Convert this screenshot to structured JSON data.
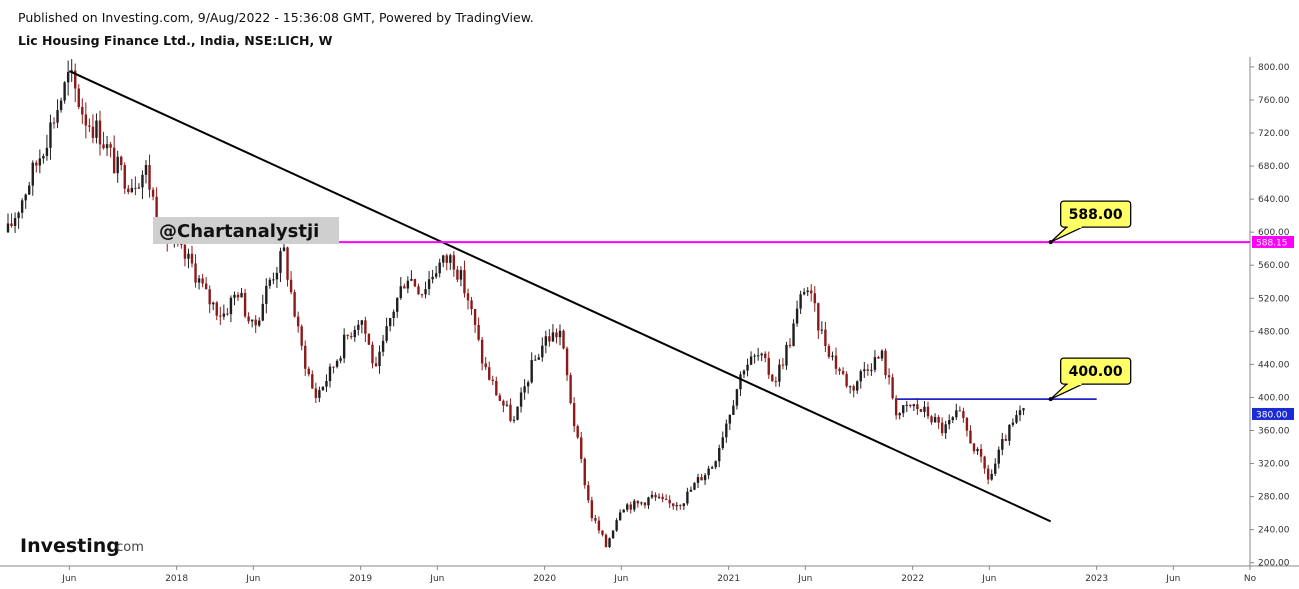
{
  "header": {
    "published": "Published on Investing.com, 9/Aug/2022 - 15:36:08 GMT, Powered by TradingView.",
    "title": "Lic Housing Finance Ltd., India, NSE:LICH, W"
  },
  "watermark": "@Chartanalystji",
  "brand": {
    "name": "Investing",
    "suffix": ".com"
  },
  "colors": {
    "up": "#1f1f1f",
    "down": "#8b1a1a",
    "resistance": "#ff00ff",
    "support_line": "#2222cc",
    "trendline": "#000000",
    "callout_fill": "#ffff66",
    "price_tag_current": "#1a2bd6",
    "price_tag_level": "#ff00ff"
  },
  "chart_data": {
    "type": "candlestick",
    "interval": "W",
    "y_axis": {
      "ticks": [
        "200.00",
        "240.00",
        "280.00",
        "320.00",
        "360.00",
        "400.00",
        "440.00",
        "480.00",
        "520.00",
        "560.00",
        "600.00",
        "640.00",
        "680.00",
        "720.00",
        "760.00",
        "800.00"
      ],
      "ylim": [
        196,
        812
      ]
    },
    "x_axis": {
      "ticks": [
        {
          "label": "Jun",
          "date": "2017-06"
        },
        {
          "label": "2018",
          "date": "2018-01"
        },
        {
          "label": "Jun",
          "date": "2018-06"
        },
        {
          "label": "2019",
          "date": "2019-01"
        },
        {
          "label": "Jun",
          "date": "2019-06"
        },
        {
          "label": "2020",
          "date": "2020-01"
        },
        {
          "label": "Jun",
          "date": "2020-06"
        },
        {
          "label": "2021",
          "date": "2021-01"
        },
        {
          "label": "Jun",
          "date": "2021-06"
        },
        {
          "label": "2022",
          "date": "2022-01"
        },
        {
          "label": "Jun",
          "date": "2022-06"
        },
        {
          "label": "2023",
          "date": "2023-01"
        },
        {
          "label": "Jun",
          "date": "2023-06"
        },
        {
          "label": "No",
          "date": "2023-11"
        }
      ],
      "xlim": [
        "2017-02",
        "2023-11"
      ]
    },
    "series_path": [
      [
        "2017-02",
        600
      ],
      [
        "2017-04",
        690
      ],
      [
        "2017-05",
        740
      ],
      [
        "2017-06",
        790
      ],
      [
        "2017-07",
        740
      ],
      [
        "2017-08",
        720
      ],
      [
        "2017-09",
        680
      ],
      [
        "2017-10",
        660
      ],
      [
        "2017-11",
        675
      ],
      [
        "2017-12",
        600
      ],
      [
        "2018-01",
        580
      ],
      [
        "2018-02",
        560
      ],
      [
        "2018-03",
        520
      ],
      [
        "2018-04",
        500
      ],
      [
        "2018-05",
        530
      ],
      [
        "2018-06",
        480
      ],
      [
        "2018-07",
        540
      ],
      [
        "2018-08",
        575
      ],
      [
        "2018-09",
        470
      ],
      [
        "2018-10",
        400
      ],
      [
        "2018-11",
        430
      ],
      [
        "2018-12",
        470
      ],
      [
        "2019-01",
        500
      ],
      [
        "2019-02",
        430
      ],
      [
        "2019-03",
        500
      ],
      [
        "2019-04",
        550
      ],
      [
        "2019-05",
        530
      ],
      [
        "2019-06",
        560
      ],
      [
        "2019-07",
        570
      ],
      [
        "2019-08",
        520
      ],
      [
        "2019-09",
        440
      ],
      [
        "2019-10",
        400
      ],
      [
        "2019-11",
        370
      ],
      [
        "2019-12",
        430
      ],
      [
        "2020-01",
        470
      ],
      [
        "2020-02",
        480
      ],
      [
        "2020-03",
        360
      ],
      [
        "2020-04",
        260
      ],
      [
        "2020-05",
        220
      ],
      [
        "2020-06",
        270
      ],
      [
        "2020-07",
        270
      ],
      [
        "2020-08",
        280
      ],
      [
        "2020-09",
        270
      ],
      [
        "2020-10",
        275
      ],
      [
        "2020-11",
        300
      ],
      [
        "2020-12",
        320
      ],
      [
        "2021-01",
        380
      ],
      [
        "2021-02",
        440
      ],
      [
        "2021-03",
        450
      ],
      [
        "2021-04",
        420
      ],
      [
        "2021-05",
        470
      ],
      [
        "2021-06",
        540
      ],
      [
        "2021-07",
        480
      ],
      [
        "2021-08",
        440
      ],
      [
        "2021-09",
        410
      ],
      [
        "2021-10",
        440
      ],
      [
        "2021-11",
        450
      ],
      [
        "2021-12",
        380
      ],
      [
        "2022-01",
        390
      ],
      [
        "2022-02",
        380
      ],
      [
        "2022-03",
        360
      ],
      [
        "2022-04",
        380
      ],
      [
        "2022-05",
        340
      ],
      [
        "2022-06",
        300
      ],
      [
        "2022-07",
        350
      ],
      [
        "2022-08",
        380
      ]
    ],
    "lines": [
      {
        "name": "trendline",
        "from": [
          "2017-06",
          795
        ],
        "to": [
          "2022-10",
          250
        ]
      },
      {
        "name": "horizontal-588",
        "from": [
          "2018-01",
          588
        ],
        "to": [
          "2023-11",
          588
        ]
      },
      {
        "name": "horizontal-400",
        "from": [
          "2021-12",
          398
        ],
        "to": [
          "2023-01",
          398
        ]
      }
    ],
    "callouts": [
      {
        "label": "588.00",
        "anchor": [
          "2022-10",
          588
        ]
      },
      {
        "label": "400.00",
        "anchor": [
          "2022-10",
          398
        ]
      }
    ],
    "price_tags": [
      {
        "label": "588.15",
        "value": 588.15,
        "color_key": "price_tag_level"
      },
      {
        "label": "380.00",
        "value": 380,
        "color_key": "price_tag_current"
      }
    ]
  }
}
